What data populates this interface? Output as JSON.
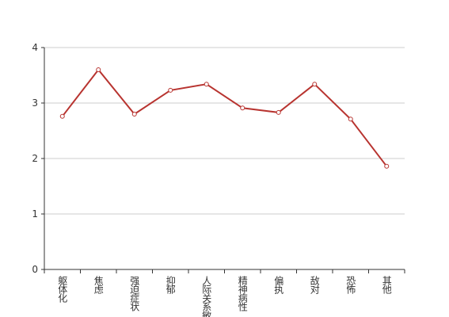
{
  "chart_data": {
    "type": "line",
    "categories": [
      "躯体化",
      "焦虑",
      "强迫症状",
      "抑郁",
      "人际关系敏感",
      "精神病性",
      "偏执",
      "敌对",
      "恐怖",
      "其他"
    ],
    "series": [
      {
        "color": "#b83430",
        "values": [
          2.76,
          3.6,
          2.8,
          3.23,
          3.34,
          2.91,
          2.83,
          3.34,
          2.71,
          1.86
        ]
      }
    ],
    "ylim": [
      0,
      4
    ],
    "yticks": [
      0,
      1,
      2,
      3,
      4
    ],
    "grid": true
  }
}
